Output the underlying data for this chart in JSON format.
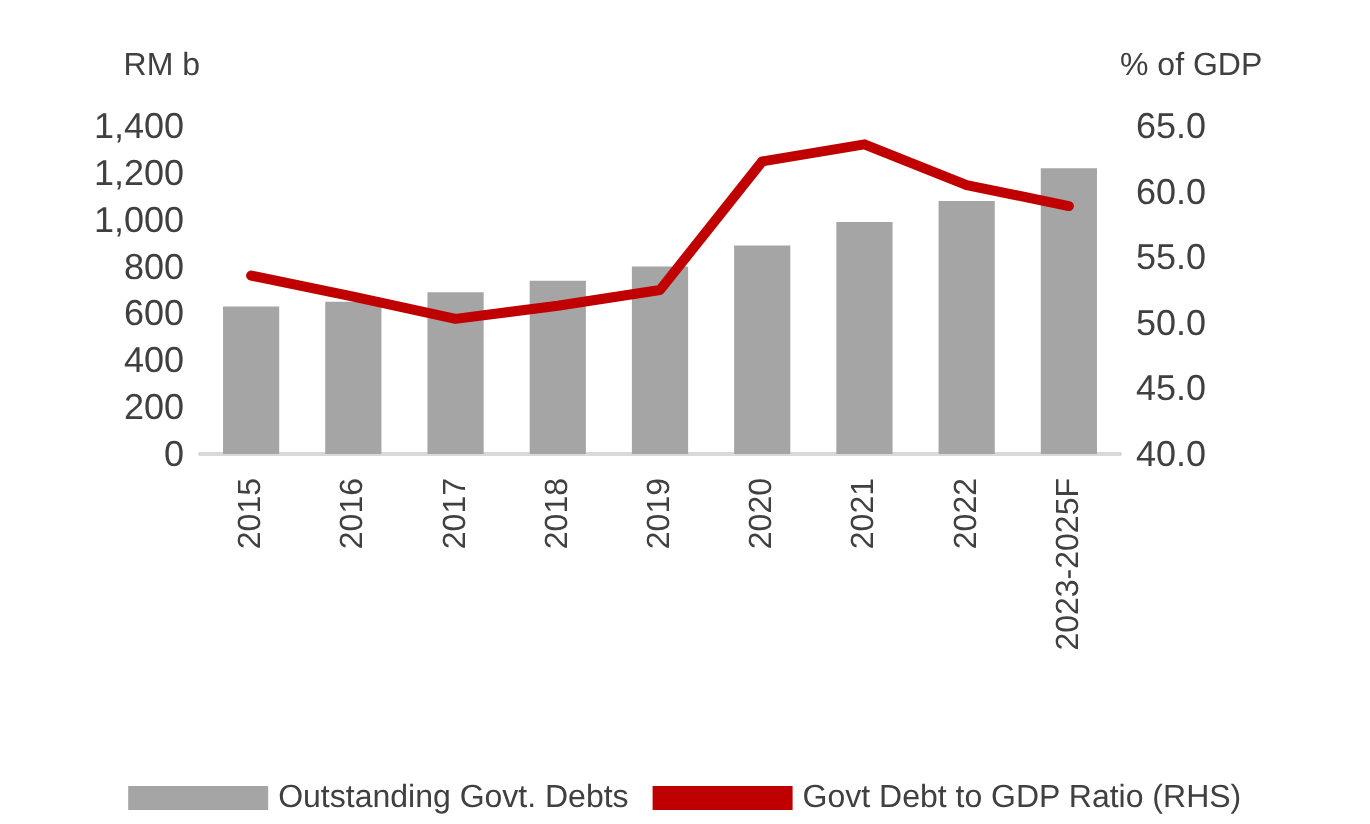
{
  "chart_data": {
    "type": "bar",
    "ylabel": "RM b",
    "y2label": "% of GDP",
    "categories": [
      "2015",
      "2016",
      "2017",
      "2018",
      "2019",
      "2020",
      "2021",
      "2022",
      "2023-2025F"
    ],
    "series": [
      {
        "name": "Outstanding Govt. Debts",
        "color": "#a5a5a5",
        "values": [
          630,
          650,
          690,
          740,
          800,
          890,
          990,
          1080,
          1220
        ]
      },
      {
        "name": "Govt Debt to GDP Ratio (RHS)",
        "type": "line",
        "axis": "y2",
        "color": "#c00000",
        "values": [
          53.6,
          52.0,
          50.3,
          51.3,
          52.5,
          62.3,
          63.6,
          60.5,
          58.9
        ]
      }
    ],
    "ylim": [
      0,
      1400
    ],
    "yticks": [
      0,
      200,
      400,
      600,
      800,
      {
        "value": 1000,
        "label": "1,000"
      },
      {
        "value": 1200,
        "label": "1,200"
      },
      {
        "value": 1400,
        "label": "1,400"
      }
    ],
    "y2lim": [
      40,
      65
    ],
    "y2ticks": [
      {
        "value": 40,
        "label": "40.0"
      },
      {
        "value": 45,
        "label": "45.0"
      },
      {
        "value": 50,
        "label": "50.0"
      },
      {
        "value": 55,
        "label": "55.0"
      },
      {
        "value": 60,
        "label": "60.0"
      },
      {
        "value": 65,
        "label": "65.0"
      }
    ],
    "grid": false,
    "legend": "bottom",
    "marker": "none",
    "line_style": "solid"
  }
}
